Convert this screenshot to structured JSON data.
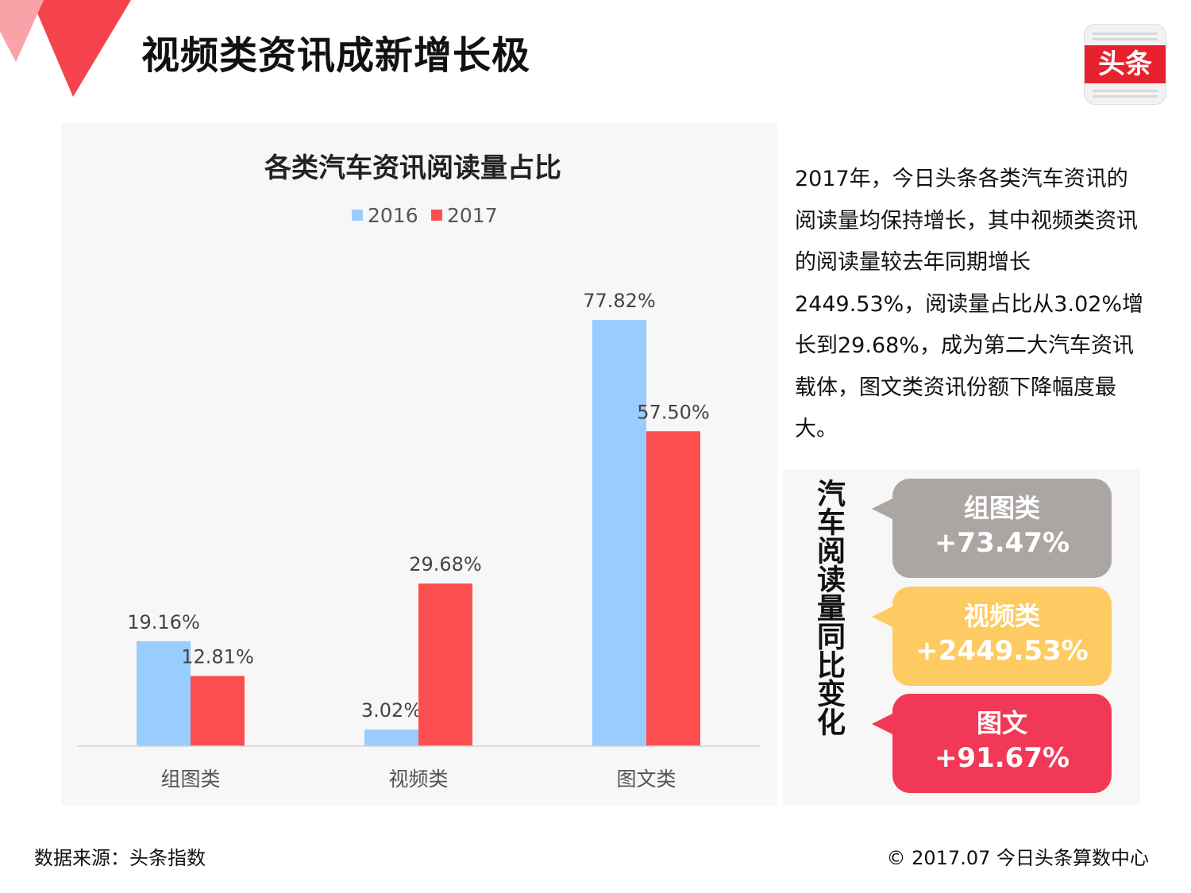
{
  "page": {
    "title": "视频类资讯成新增长极",
    "logo_text": "头条"
  },
  "description": "2017年，今日头条各类汽车资讯的阅读量均保持增长，其中视频类资讯的阅读量较去年同期增长2449.53%，阅读量占比从3.02%增长到29.68%，成为第二大汽车资讯载体，图文类资讯份额下降幅度最大。",
  "change_panel": {
    "title": "汽车阅读量同比变化",
    "items": [
      {
        "name": "组图类",
        "value": "+73.47%",
        "color": "#aba6a3"
      },
      {
        "name": "视频类",
        "value": "+2449.53%",
        "color": "#fecb62"
      },
      {
        "name": "图文",
        "value": "+91.67%",
        "color": "#f23857"
      }
    ]
  },
  "footer": {
    "source": "数据来源：头条指数",
    "copyright": "© 2017.07 今日头条算数中心"
  },
  "colors": {
    "accent_red": "#fd4f4f",
    "accent_blue": "#99ccff",
    "deco_red": "#f5434d",
    "deco_pink": "#f9a3a8"
  },
  "chart_data": {
    "type": "bar",
    "title": "各类汽车资讯阅读量占比",
    "categories": [
      "组图类",
      "视频类",
      "图文类"
    ],
    "series": [
      {
        "name": "2016",
        "values": [
          19.16,
          3.02,
          77.82
        ],
        "labels": [
          "19.16%",
          "3.02%",
          "77.82%"
        ],
        "color": "#99ccff"
      },
      {
        "name": "2017",
        "values": [
          12.81,
          29.68,
          57.5
        ],
        "labels": [
          "12.81%",
          "29.68%",
          "57.50%"
        ],
        "color": "#fd4f4f"
      }
    ],
    "ylim": [
      0,
      80
    ],
    "grid": false,
    "legend": "top-center"
  }
}
